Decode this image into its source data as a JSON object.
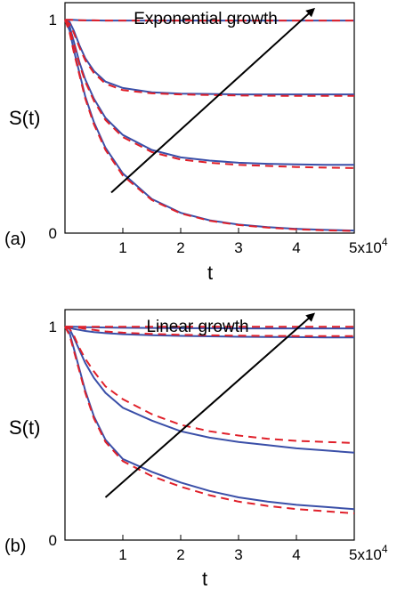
{
  "colors": {
    "solid_series": "#3a4fa8",
    "dashed_series": "#e0202a",
    "arrow": "#000000"
  },
  "chart_data": [
    {
      "type": "line",
      "panel_label": "(a)",
      "annotation": "Exponential growth",
      "xlabel": "t",
      "ylabel": "S(t)",
      "xlim": [
        0,
        50000
      ],
      "ylim": [
        0,
        1.08
      ],
      "x_ticks": [
        {
          "value": 10000,
          "label": "1"
        },
        {
          "value": 20000,
          "label": "2"
        },
        {
          "value": 30000,
          "label": "3"
        },
        {
          "value": 40000,
          "label": "4"
        },
        {
          "value": 50000,
          "label": "5x10"
        }
      ],
      "x_exponent": "4",
      "y_ticks": [
        {
          "value": 0,
          "label": "0"
        },
        {
          "value": 1,
          "label": "1"
        }
      ],
      "arrow": {
        "from": [
          8000,
          0.19
        ],
        "to": [
          43000,
          1.05
        ]
      },
      "series": [
        {
          "style": "solid",
          "x": [
            0,
            800,
            1500,
            2500,
            3500,
            5000,
            7000,
            10000,
            15000,
            20000,
            25000,
            30000,
            35000,
            40000,
            45000,
            50000
          ],
          "y": [
            1.0,
            1.0,
            0.999,
            0.998,
            0.997,
            0.997,
            0.996,
            0.996,
            0.996,
            0.996,
            0.996,
            0.996,
            0.996,
            0.996,
            0.996,
            0.996
          ]
        },
        {
          "style": "dashed",
          "x": [
            0,
            800,
            1500,
            2500,
            3500,
            5000,
            7000,
            10000,
            15000,
            20000,
            25000,
            30000,
            35000,
            40000,
            45000,
            50000
          ],
          "y": [
            1.0,
            1.0,
            0.999,
            0.998,
            0.997,
            0.997,
            0.996,
            0.996,
            0.996,
            0.996,
            0.996,
            0.996,
            0.996,
            0.996,
            0.996,
            0.996
          ]
        },
        {
          "style": "solid",
          "x": [
            0,
            800,
            1500,
            2500,
            3500,
            5000,
            7000,
            10000,
            15000,
            20000,
            25000,
            30000,
            35000,
            40000,
            45000,
            50000
          ],
          "y": [
            1.0,
            0.99,
            0.95,
            0.88,
            0.82,
            0.76,
            0.71,
            0.68,
            0.66,
            0.654,
            0.652,
            0.65,
            0.65,
            0.65,
            0.65,
            0.65
          ]
        },
        {
          "style": "dashed",
          "x": [
            0,
            800,
            1500,
            2500,
            3500,
            5000,
            7000,
            10000,
            15000,
            20000,
            25000,
            30000,
            35000,
            40000,
            45000,
            50000
          ],
          "y": [
            1.0,
            0.98,
            0.94,
            0.87,
            0.81,
            0.75,
            0.7,
            0.67,
            0.655,
            0.65,
            0.647,
            0.645,
            0.644,
            0.643,
            0.643,
            0.643
          ]
        },
        {
          "style": "solid",
          "x": [
            0,
            800,
            1500,
            2500,
            3500,
            5000,
            7000,
            10000,
            15000,
            20000,
            25000,
            30000,
            35000,
            40000,
            45000,
            50000
          ],
          "y": [
            1.0,
            0.97,
            0.9,
            0.8,
            0.72,
            0.63,
            0.54,
            0.46,
            0.39,
            0.355,
            0.34,
            0.33,
            0.325,
            0.322,
            0.32,
            0.32
          ]
        },
        {
          "style": "dashed",
          "x": [
            0,
            800,
            1500,
            2500,
            3500,
            5000,
            7000,
            10000,
            15000,
            20000,
            25000,
            30000,
            35000,
            40000,
            45000,
            50000
          ],
          "y": [
            1.0,
            0.96,
            0.89,
            0.79,
            0.71,
            0.62,
            0.53,
            0.45,
            0.38,
            0.345,
            0.33,
            0.32,
            0.315,
            0.31,
            0.307,
            0.305
          ]
        },
        {
          "style": "solid",
          "x": [
            0,
            800,
            1500,
            2500,
            3500,
            5000,
            7000,
            10000,
            15000,
            20000,
            25000,
            30000,
            35000,
            40000,
            45000,
            50000
          ],
          "y": [
            1.0,
            0.95,
            0.86,
            0.75,
            0.64,
            0.52,
            0.4,
            0.28,
            0.16,
            0.095,
            0.06,
            0.04,
            0.028,
            0.02,
            0.015,
            0.012
          ]
        },
        {
          "style": "dashed",
          "x": [
            0,
            800,
            1500,
            2500,
            3500,
            5000,
            7000,
            10000,
            15000,
            20000,
            25000,
            30000,
            35000,
            40000,
            45000,
            50000
          ],
          "y": [
            1.0,
            0.94,
            0.85,
            0.74,
            0.63,
            0.51,
            0.39,
            0.27,
            0.155,
            0.092,
            0.058,
            0.038,
            0.026,
            0.018,
            0.013,
            0.01
          ]
        }
      ]
    },
    {
      "type": "line",
      "panel_label": "(b)",
      "annotation": "Linear growth",
      "xlabel": "t",
      "ylabel": "S(t)",
      "xlim": [
        0,
        50000
      ],
      "ylim": [
        0,
        1.08
      ],
      "x_ticks": [
        {
          "value": 10000,
          "label": "1"
        },
        {
          "value": 20000,
          "label": "2"
        },
        {
          "value": 30000,
          "label": "3"
        },
        {
          "value": 40000,
          "label": "4"
        },
        {
          "value": 50000,
          "label": "5x10"
        }
      ],
      "x_exponent": "4",
      "y_ticks": [
        {
          "value": 0,
          "label": "0"
        },
        {
          "value": 1,
          "label": "1"
        }
      ],
      "arrow": {
        "from": [
          7000,
          0.2
        ],
        "to": [
          43000,
          1.06
        ]
      },
      "series": [
        {
          "style": "solid",
          "x": [
            0,
            800,
            1500,
            2500,
            3500,
            5000,
            7000,
            10000,
            15000,
            20000,
            25000,
            30000,
            35000,
            40000,
            45000,
            50000
          ],
          "y": [
            1.0,
            1.0,
            1.0,
            0.999,
            0.998,
            0.997,
            0.996,
            0.995,
            0.994,
            0.993,
            0.993,
            0.992,
            0.992,
            0.992,
            0.992,
            0.992
          ]
        },
        {
          "style": "dashed",
          "x": [
            0,
            800,
            1500,
            2500,
            3500,
            5000,
            7000,
            10000,
            15000,
            20000,
            25000,
            30000,
            35000,
            40000,
            45000,
            50000
          ],
          "y": [
            1.0,
            1.0,
            1.0,
            1.0,
            1.0,
            1.0,
            1.0,
            1.0,
            1.0,
            1.0,
            1.0,
            1.0,
            1.0,
            1.0,
            1.0,
            1.0
          ]
        },
        {
          "style": "solid",
          "x": [
            0,
            800,
            1500,
            2500,
            3500,
            5000,
            7000,
            10000,
            15000,
            20000,
            25000,
            30000,
            35000,
            40000,
            45000,
            50000
          ],
          "y": [
            1.0,
            0.995,
            0.99,
            0.985,
            0.98,
            0.975,
            0.97,
            0.965,
            0.96,
            0.957,
            0.955,
            0.953,
            0.952,
            0.951,
            0.95,
            0.95
          ]
        },
        {
          "style": "dashed",
          "x": [
            0,
            800,
            1500,
            2500,
            3500,
            5000,
            7000,
            10000,
            15000,
            20000,
            25000,
            30000,
            35000,
            40000,
            45000,
            50000
          ],
          "y": [
            1.0,
            1.0,
            0.998,
            0.995,
            0.99,
            0.985,
            0.978,
            0.972,
            0.966,
            0.962,
            0.96,
            0.958,
            0.957,
            0.956,
            0.956,
            0.956
          ]
        },
        {
          "style": "solid",
          "x": [
            0,
            800,
            1500,
            2500,
            3500,
            5000,
            7000,
            10000,
            15000,
            20000,
            25000,
            30000,
            35000,
            40000,
            45000,
            50000
          ],
          "y": [
            1.0,
            0.99,
            0.95,
            0.89,
            0.83,
            0.76,
            0.69,
            0.62,
            0.56,
            0.51,
            0.48,
            0.46,
            0.445,
            0.43,
            0.42,
            0.41
          ]
        },
        {
          "style": "dashed",
          "x": [
            0,
            800,
            1500,
            2500,
            3500,
            5000,
            7000,
            10000,
            15000,
            20000,
            25000,
            30000,
            35000,
            40000,
            45000,
            50000
          ],
          "y": [
            1.0,
            0.99,
            0.96,
            0.9,
            0.85,
            0.79,
            0.72,
            0.66,
            0.59,
            0.54,
            0.51,
            0.49,
            0.475,
            0.465,
            0.46,
            0.455
          ]
        },
        {
          "style": "solid",
          "x": [
            0,
            800,
            1500,
            2500,
            3500,
            5000,
            7000,
            10000,
            15000,
            20000,
            25000,
            30000,
            35000,
            40000,
            45000,
            50000
          ],
          "y": [
            1.0,
            0.97,
            0.9,
            0.8,
            0.7,
            0.58,
            0.47,
            0.38,
            0.32,
            0.27,
            0.23,
            0.2,
            0.18,
            0.165,
            0.155,
            0.145
          ]
        },
        {
          "style": "dashed",
          "x": [
            0,
            800,
            1500,
            2500,
            3500,
            5000,
            7000,
            10000,
            15000,
            20000,
            25000,
            30000,
            35000,
            40000,
            45000,
            50000
          ],
          "y": [
            1.0,
            0.96,
            0.89,
            0.79,
            0.69,
            0.57,
            0.46,
            0.37,
            0.3,
            0.25,
            0.21,
            0.18,
            0.16,
            0.145,
            0.135,
            0.125
          ]
        }
      ]
    }
  ]
}
